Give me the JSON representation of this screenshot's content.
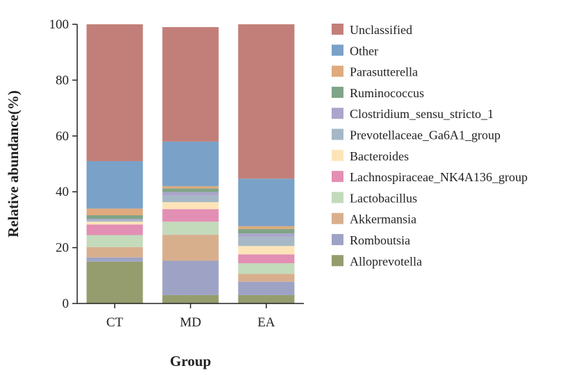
{
  "chart_data": {
    "type": "bar",
    "stacked": true,
    "xlabel": "Group",
    "ylabel": "Relative abundance(%)",
    "ylim": [
      0,
      100
    ],
    "yticks": [
      0,
      20,
      40,
      60,
      80,
      100
    ],
    "categories": [
      "CT",
      "MD",
      "EA"
    ],
    "legend_position": "right",
    "grid": false,
    "series": [
      {
        "name": "Alloprevotella",
        "color": "#959d6e",
        "values": [
          15.0,
          3.0,
          3.0
        ]
      },
      {
        "name": "Romboutsia",
        "color": "#9ea3c6",
        "values": [
          1.5,
          12.3,
          4.8
        ]
      },
      {
        "name": "Akkermansia",
        "color": "#d8af8d",
        "values": [
          3.7,
          9.3,
          2.8
        ]
      },
      {
        "name": "Lactobacillus",
        "color": "#c3dabb",
        "values": [
          4.3,
          4.7,
          3.8
        ]
      },
      {
        "name": "Lachnospiraceae_NK4A136_group",
        "color": "#e38fb4",
        "values": [
          3.8,
          4.5,
          3.2
        ]
      },
      {
        "name": "Bacteroides",
        "color": "#fde4b8",
        "values": [
          1.0,
          2.5,
          3.0
        ]
      },
      {
        "name": "Prevotellaceae_Ga6A1_group",
        "color": "#a6b8c6",
        "values": [
          0.5,
          2.3,
          3.3
        ]
      },
      {
        "name": "Clostridium_sensu_stricto_1",
        "color": "#aaa5cb",
        "values": [
          0.5,
          1.3,
          1.2
        ]
      },
      {
        "name": "Ruminococcus",
        "color": "#7fa487",
        "values": [
          1.3,
          1.3,
          1.6
        ]
      },
      {
        "name": "Parasutterella",
        "color": "#dfaa7d",
        "values": [
          2.4,
          0.8,
          1.0
        ]
      },
      {
        "name": "Other",
        "color": "#7aa1c8",
        "values": [
          17.0,
          16.0,
          17.0
        ]
      },
      {
        "name": "Unclassified",
        "color": "#c27f79",
        "values": [
          49.0,
          41.0,
          55.3
        ]
      }
    ]
  }
}
